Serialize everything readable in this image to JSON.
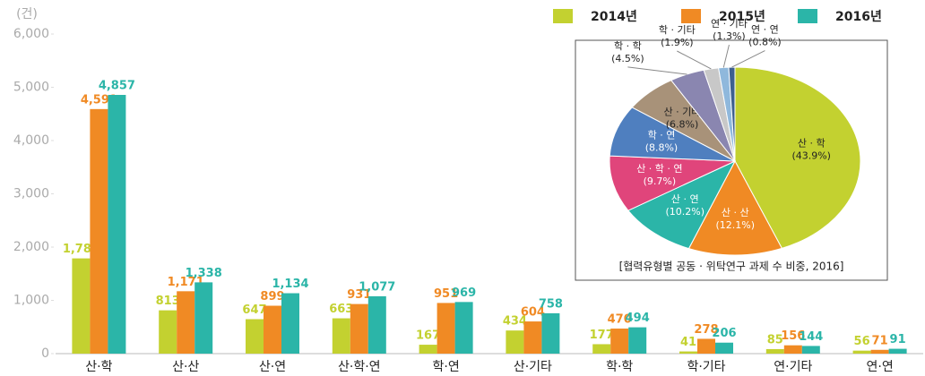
{
  "chart_data": [
    {
      "type": "bar",
      "y_unit": "(건)",
      "categories": [
        "산·학",
        "산·산",
        "산·연",
        "산·학·연",
        "학·연",
        "산·기타",
        "학·학",
        "학·기타",
        "연·기타",
        "연·연"
      ],
      "series": [
        {
          "name": "2014년",
          "color": "#c3d130",
          "values": [
            1788,
            813,
            647,
            663,
            167,
            434,
            177,
            41,
            85,
            56
          ],
          "value_labels": [
            "1,788",
            "813",
            "647",
            "663",
            "167",
            "434",
            "177",
            "41",
            "85",
            "56"
          ]
        },
        {
          "name": "2015년",
          "color": "#f08a24",
          "values": [
            4591,
            1171,
            899,
            931,
            951,
            604,
            470,
            278,
            156,
            71
          ],
          "value_labels": [
            "4,591",
            "1,171",
            "899",
            "931",
            "951",
            "604",
            "470",
            "278",
            "156",
            "71"
          ]
        },
        {
          "name": "2016년",
          "color": "#2bb5a8",
          "values": [
            4857,
            1338,
            1134,
            1077,
            969,
            758,
            494,
            206,
            144,
            91
          ],
          "value_labels": [
            "4,857",
            "1,338",
            "1,134",
            "1,077",
            "969",
            "758",
            "494",
            "206",
            "144",
            "91"
          ]
        }
      ],
      "ylim": [
        0,
        6000
      ],
      "yticks": [
        0,
        {
          "value": 1000,
          "label": "1,000"
        },
        {
          "value": 2000,
          "label": "2,000"
        },
        {
          "value": 3000,
          "label": "3,000"
        },
        {
          "value": 4000,
          "label": "4,000"
        },
        {
          "value": 5000,
          "label": "5,000"
        },
        {
          "value": 6000,
          "label": "6,000"
        }
      ],
      "legend": "top-right"
    },
    {
      "type": "pie",
      "caption": "[협력유형별 공동 · 위탁연구 과제 수 비중, 2016]",
      "categories": [
        "산 · 학",
        "산 · 산",
        "산 · 연",
        "산 · 학 · 연",
        "학 · 연",
        "산 · 기타",
        "학 · 학",
        "학 · 기타",
        "연 · 기타",
        "연 · 연"
      ],
      "values": [
        43.9,
        12.1,
        10.2,
        9.7,
        8.8,
        6.8,
        4.5,
        1.9,
        1.3,
        0.8
      ],
      "value_labels": [
        "(43.9%)",
        "(12.1%)",
        "(10.2%)",
        "(9.7%)",
        "(8.8%)",
        "(6.8%)",
        "(4.5%)",
        "(1.9%)",
        "(1.3%)",
        "(0.8%)"
      ],
      "colors": [
        "#c3d130",
        "#f08a24",
        "#2bb5a8",
        "#e0457b",
        "#4f7fbf",
        "#a89279",
        "#8a86b0",
        "#c8c8c8",
        "#8fb8dc",
        "#3d5f8f"
      ]
    }
  ]
}
